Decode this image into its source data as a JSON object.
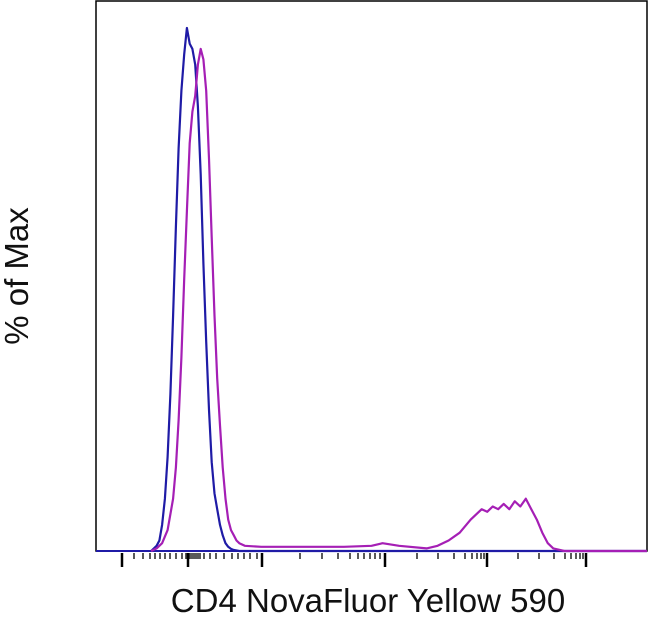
{
  "chart_data": {
    "type": "line",
    "title": "",
    "xlabel": "CD4 NovaFluor Yellow 590",
    "ylabel": "% of Max",
    "xscale": "biexponential",
    "x_tick_labels": [],
    "y_tick_labels": [],
    "xlim": [
      0,
      1
    ],
    "ylim": [
      0,
      100
    ],
    "grid": false,
    "legend": "none",
    "series": [
      {
        "color": "#1f1ba6",
        "x": [
          0.1,
          0.105,
          0.11,
          0.115,
          0.12,
          0.125,
          0.13,
          0.135,
          0.14,
          0.145,
          0.15,
          0.155,
          0.16,
          0.165,
          0.17,
          0.175,
          0.18,
          0.185,
          0.19,
          0.195,
          0.2,
          0.205,
          0.21,
          0.215,
          0.22,
          0.225,
          0.23,
          0.235,
          0.24,
          0.245,
          0.25,
          0.255,
          0.26,
          0.265,
          0.27,
          0.275,
          0.28,
          0.3,
          0.5,
          0.7,
          0.9,
          1.0
        ],
        "y": [
          0,
          0.5,
          1,
          2,
          5,
          10,
          18,
          30,
          45,
          62,
          77,
          88,
          95,
          100,
          97,
          96,
          93,
          85,
          72,
          55,
          40,
          27,
          17,
          11,
          8,
          5,
          3,
          1.5,
          0.8,
          0.4,
          0.2,
          0.1,
          0,
          0,
          0,
          0,
          0,
          0,
          0,
          0,
          0,
          0
        ]
      },
      {
        "color": "#a51fb5",
        "x": [
          0.1,
          0.11,
          0.12,
          0.13,
          0.14,
          0.145,
          0.15,
          0.155,
          0.16,
          0.165,
          0.17,
          0.175,
          0.18,
          0.185,
          0.19,
          0.195,
          0.2,
          0.205,
          0.21,
          0.215,
          0.22,
          0.225,
          0.23,
          0.235,
          0.24,
          0.245,
          0.25,
          0.255,
          0.26,
          0.27,
          0.3,
          0.35,
          0.4,
          0.45,
          0.5,
          0.52,
          0.55,
          0.6,
          0.62,
          0.64,
          0.66,
          0.68,
          0.7,
          0.71,
          0.72,
          0.73,
          0.74,
          0.75,
          0.76,
          0.77,
          0.78,
          0.79,
          0.8,
          0.81,
          0.82,
          0.83,
          0.85,
          0.9,
          1.0
        ],
        "y": [
          0,
          0.5,
          1.5,
          4,
          10,
          16,
          25,
          37,
          52,
          65,
          78,
          84,
          87,
          93,
          96,
          94,
          88,
          75,
          60,
          45,
          33,
          24,
          16,
          10,
          6,
          4,
          3,
          2,
          1.5,
          1,
          0.8,
          0.8,
          0.8,
          0.8,
          1,
          1.5,
          1,
          0.5,
          1,
          2,
          3.5,
          6,
          8,
          7.5,
          8.5,
          8,
          9,
          8,
          9.5,
          8.5,
          10,
          8,
          6,
          3.5,
          1.5,
          0.5,
          0,
          0,
          0
        ]
      }
    ]
  }
}
